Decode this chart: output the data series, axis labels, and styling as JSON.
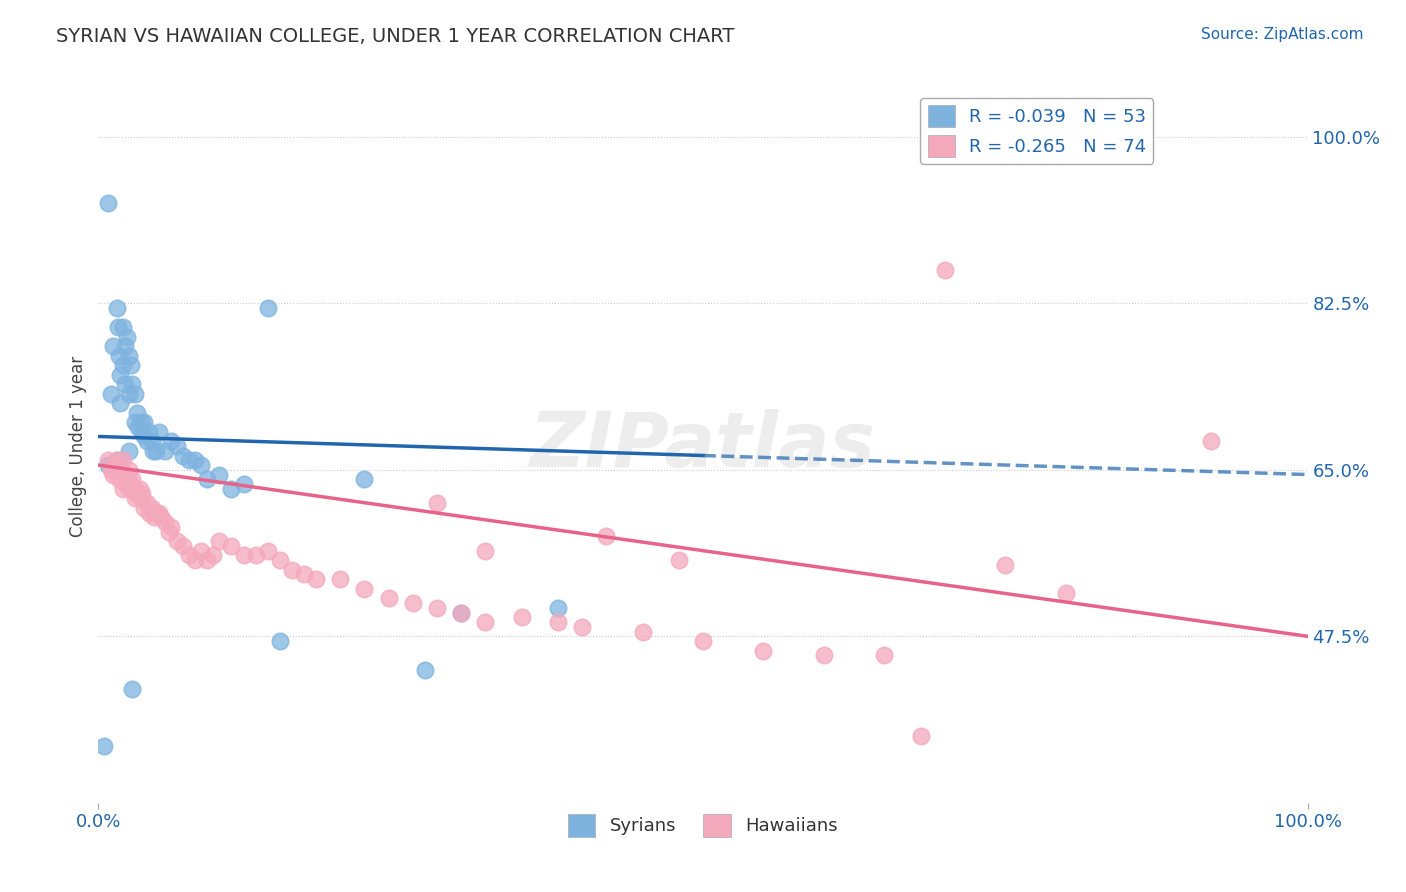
{
  "title": "SYRIAN VS HAWAIIAN COLLEGE, UNDER 1 YEAR CORRELATION CHART",
  "source": "Source: ZipAtlas.com",
  "ylabel": "College, Under 1 year",
  "xlabel": "",
  "xlim": [
    0.0,
    1.0
  ],
  "ylim": [
    0.3,
    1.05
  ],
  "xticks": [
    0.0,
    1.0
  ],
  "xticklabels": [
    "0.0%",
    "100.0%"
  ],
  "yticks_right": [
    0.475,
    0.65,
    0.825,
    1.0
  ],
  "ytick_labels_right": [
    "47.5%",
    "65.0%",
    "82.5%",
    "100.0%"
  ],
  "legend_syrian": "R = -0.039   N = 53",
  "legend_hawaiian": "R = -0.265   N = 74",
  "legend_label_syrian": "Syrians",
  "legend_label_hawaiian": "Hawaiians",
  "color_syrian": "#7eb3e0",
  "color_hawaiian": "#f4a8bb",
  "color_syrian_line": "#2166ac",
  "color_hawaiian_line": "#e8638a",
  "background_color": "#ffffff",
  "watermark": "ZIPatlas",
  "syrian_line_x": [
    0.0,
    1.0
  ],
  "syrian_line_y": [
    0.685,
    0.645
  ],
  "hawaiian_line_x": [
    0.0,
    1.0
  ],
  "hawaiian_line_y": [
    0.655,
    0.475
  ],
  "syrian_x": [
    0.008,
    0.01,
    0.012,
    0.015,
    0.016,
    0.017,
    0.018,
    0.018,
    0.02,
    0.02,
    0.022,
    0.022,
    0.024,
    0.025,
    0.025,
    0.027,
    0.028,
    0.03,
    0.03,
    0.032,
    0.033,
    0.035,
    0.036,
    0.038,
    0.038,
    0.04,
    0.042,
    0.044,
    0.045,
    0.048,
    0.05,
    0.055,
    0.06,
    0.065,
    0.07,
    0.075,
    0.08,
    0.085,
    0.09,
    0.1,
    0.11,
    0.12,
    0.14,
    0.15,
    0.22,
    0.27,
    0.3,
    0.38,
    0.025,
    0.015,
    0.008,
    0.005,
    0.028
  ],
  "syrian_y": [
    0.93,
    0.73,
    0.78,
    0.82,
    0.8,
    0.77,
    0.75,
    0.72,
    0.8,
    0.76,
    0.78,
    0.74,
    0.79,
    0.77,
    0.73,
    0.76,
    0.74,
    0.73,
    0.7,
    0.71,
    0.695,
    0.7,
    0.69,
    0.7,
    0.685,
    0.68,
    0.69,
    0.68,
    0.67,
    0.67,
    0.69,
    0.67,
    0.68,
    0.675,
    0.665,
    0.66,
    0.66,
    0.655,
    0.64,
    0.645,
    0.63,
    0.635,
    0.82,
    0.47,
    0.64,
    0.44,
    0.5,
    0.505,
    0.67,
    0.66,
    0.655,
    0.36,
    0.42
  ],
  "hawaiian_x": [
    0.008,
    0.01,
    0.012,
    0.014,
    0.015,
    0.016,
    0.017,
    0.018,
    0.02,
    0.02,
    0.022,
    0.023,
    0.024,
    0.025,
    0.026,
    0.027,
    0.028,
    0.03,
    0.03,
    0.032,
    0.034,
    0.035,
    0.036,
    0.038,
    0.04,
    0.042,
    0.044,
    0.046,
    0.048,
    0.05,
    0.052,
    0.055,
    0.058,
    0.06,
    0.065,
    0.07,
    0.075,
    0.08,
    0.085,
    0.09,
    0.095,
    0.1,
    0.11,
    0.12,
    0.13,
    0.14,
    0.15,
    0.16,
    0.17,
    0.18,
    0.2,
    0.22,
    0.24,
    0.26,
    0.28,
    0.3,
    0.32,
    0.35,
    0.38,
    0.4,
    0.42,
    0.45,
    0.5,
    0.55,
    0.6,
    0.65,
    0.7,
    0.75,
    0.8,
    0.92,
    0.28,
    0.32,
    0.48,
    0.68
  ],
  "hawaiian_y": [
    0.66,
    0.65,
    0.645,
    0.655,
    0.66,
    0.65,
    0.64,
    0.655,
    0.66,
    0.63,
    0.645,
    0.635,
    0.64,
    0.65,
    0.63,
    0.635,
    0.64,
    0.63,
    0.62,
    0.625,
    0.63,
    0.62,
    0.625,
    0.61,
    0.615,
    0.605,
    0.61,
    0.6,
    0.605,
    0.605,
    0.6,
    0.595,
    0.585,
    0.59,
    0.575,
    0.57,
    0.56,
    0.555,
    0.565,
    0.555,
    0.56,
    0.575,
    0.57,
    0.56,
    0.56,
    0.565,
    0.555,
    0.545,
    0.54,
    0.535,
    0.535,
    0.525,
    0.515,
    0.51,
    0.505,
    0.5,
    0.49,
    0.495,
    0.49,
    0.485,
    0.58,
    0.48,
    0.47,
    0.46,
    0.455,
    0.455,
    0.86,
    0.55,
    0.52,
    0.68,
    0.615,
    0.565,
    0.555,
    0.37
  ]
}
